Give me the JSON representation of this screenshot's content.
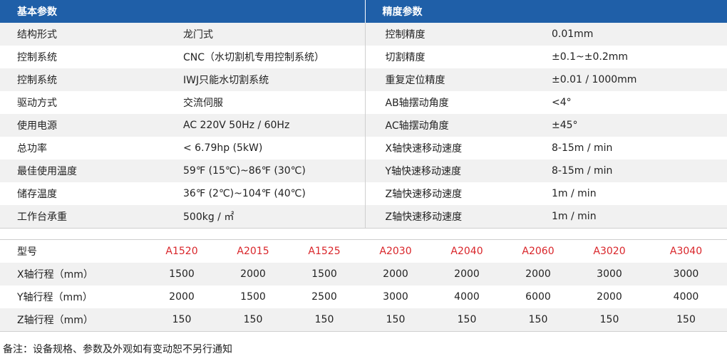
{
  "basic": {
    "header": "基本参数",
    "rows": [
      {
        "label": "结构形式",
        "value": "龙门式"
      },
      {
        "label": "控制系统",
        "value": "CNC（水切割机专用控制系统）"
      },
      {
        "label": "控制系统",
        "value": "IWJ只能水切割系统"
      },
      {
        "label": "驱动方式",
        "value": "交流伺服"
      },
      {
        "label": "使用电源",
        "value": "AC 220V 50Hz / 60Hz"
      },
      {
        "label": "总功率",
        "value": "< 6.79hp (5kW)"
      },
      {
        "label": "最佳使用温度",
        "value": "59℉ (15℃)~86℉ (30℃)"
      },
      {
        "label": "储存温度",
        "value": "36℉ (2℃)~104℉ (40℃)"
      },
      {
        "label": "工作台承重",
        "value": "500kg / ㎡"
      }
    ]
  },
  "precision": {
    "header": "精度参数",
    "rows": [
      {
        "label": "控制精度",
        "value": "0.01mm"
      },
      {
        "label": "切割精度",
        "value": "±0.1~±0.2mm"
      },
      {
        "label": "重复定位精度",
        "value": "±0.01 / 1000mm"
      },
      {
        "label": "AB轴摆动角度",
        "value": "<4°"
      },
      {
        "label": "AC轴摆动角度",
        "value": "±45°"
      },
      {
        "label": "X轴快速移动速度",
        "value": "8-15m / min"
      },
      {
        "label": "Y轴快速移动速度",
        "value": "8-15m / min"
      },
      {
        "label": "Z轴快速移动速度",
        "value": "1m / min"
      },
      {
        "label": "Z轴快速移动速度",
        "value": "1m / min"
      }
    ]
  },
  "models": {
    "label": "型号",
    "names": [
      "A1520",
      "A2015",
      "A1525",
      "A2030",
      "A2040",
      "A2060",
      "A3020",
      "A3040"
    ],
    "rows": [
      {
        "label": "X轴行程（mm）",
        "values": [
          "1500",
          "2000",
          "1500",
          "2000",
          "2000",
          "2000",
          "3000",
          "3000"
        ]
      },
      {
        "label": "Y轴行程（mm）",
        "values": [
          "2000",
          "1500",
          "2500",
          "3000",
          "4000",
          "6000",
          "2000",
          "4000"
        ]
      },
      {
        "label": "Z轴行程（mm）",
        "values": [
          "150",
          "150",
          "150",
          "150",
          "150",
          "150",
          "150",
          "150"
        ]
      }
    ]
  },
  "note": "备注：设备规格、参数及外观如有变动恕不另行通知",
  "colors": {
    "header_bg": "#1f5fa8",
    "model_name": "#d9252a",
    "row_alt": "#f1f1f1"
  }
}
